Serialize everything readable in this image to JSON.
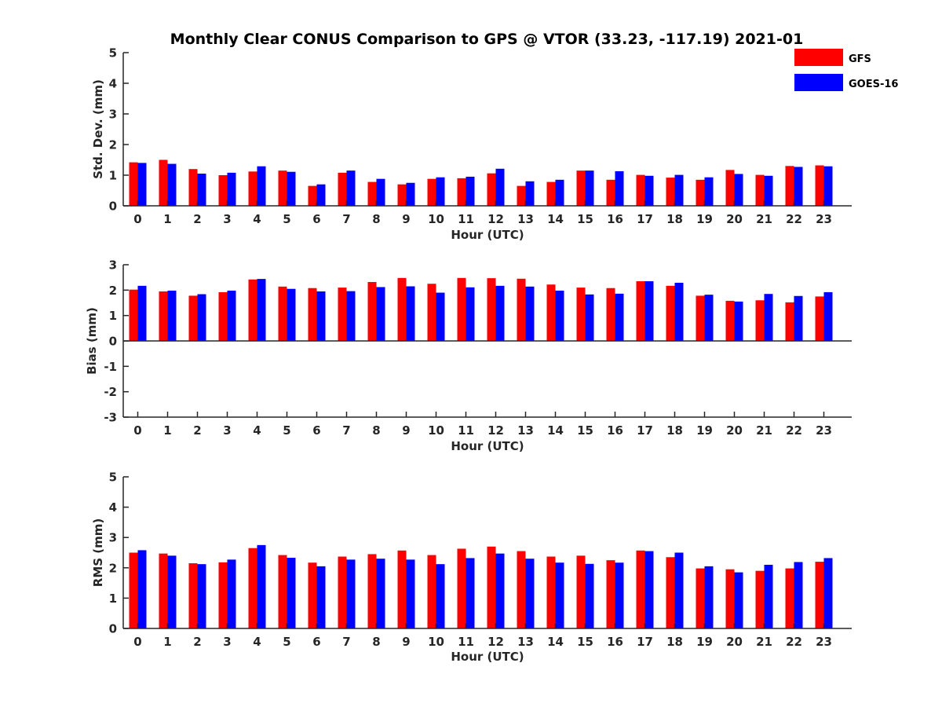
{
  "colors": {
    "gfs": "#ff0000",
    "goes": "#0000ff",
    "axis": "#262626"
  },
  "chart_data": [
    {
      "type": "bar",
      "title": "Monthly Clear CONUS Comparison to GPS @ VTOR (33.23, -117.19) 2021-01",
      "xlabel": "Hour (UTC)",
      "ylabel": "Std. Dev. (mm)",
      "ylim": [
        0,
        5
      ],
      "yticks": [
        "0",
        "1",
        "2",
        "3",
        "4",
        "5"
      ],
      "categories": [
        "0",
        "1",
        "2",
        "3",
        "4",
        "5",
        "6",
        "7",
        "8",
        "9",
        "10",
        "11",
        "12",
        "13",
        "14",
        "15",
        "16",
        "17",
        "18",
        "19",
        "20",
        "21",
        "22",
        "23"
      ],
      "legend": {
        "placement": "top-right",
        "entries": [
          "GFS",
          "GOES-16"
        ]
      },
      "series": [
        {
          "name": "GFS",
          "values": [
            1.42,
            1.5,
            1.2,
            1.0,
            1.12,
            1.15,
            0.65,
            1.08,
            0.78,
            0.7,
            0.88,
            0.9,
            1.06,
            0.65,
            0.78,
            1.15,
            0.85,
            1.01,
            0.92,
            0.85,
            1.17,
            1.01,
            1.3,
            1.32
          ]
        },
        {
          "name": "GOES-16",
          "values": [
            1.4,
            1.37,
            1.05,
            1.08,
            1.29,
            1.11,
            0.7,
            1.15,
            0.88,
            0.75,
            0.93,
            0.95,
            1.21,
            0.8,
            0.85,
            1.15,
            1.13,
            0.98,
            1.01,
            0.93,
            1.04,
            0.98,
            1.27,
            1.29
          ]
        }
      ]
    },
    {
      "type": "bar",
      "xlabel": "Hour (UTC)",
      "ylabel": "Bias (mm)",
      "ylim": [
        -3,
        3
      ],
      "yticks": [
        "-3",
        "-2",
        "-1",
        "0",
        "1",
        "2",
        "3"
      ],
      "categories": [
        "0",
        "1",
        "2",
        "3",
        "4",
        "5",
        "6",
        "7",
        "8",
        "9",
        "10",
        "11",
        "12",
        "13",
        "14",
        "15",
        "16",
        "17",
        "18",
        "19",
        "20",
        "21",
        "22",
        "23"
      ],
      "series": [
        {
          "name": "GFS",
          "values": [
            2.02,
            1.95,
            1.78,
            1.92,
            2.42,
            2.14,
            2.08,
            2.1,
            2.32,
            2.48,
            2.25,
            2.48,
            2.47,
            2.45,
            2.22,
            2.1,
            2.08,
            2.35,
            2.17,
            1.78,
            1.58,
            1.6,
            1.52,
            1.75
          ]
        },
        {
          "name": "GOES-16",
          "values": [
            2.17,
            1.98,
            1.84,
            1.98,
            2.44,
            2.05,
            1.95,
            1.96,
            2.12,
            2.15,
            1.9,
            2.11,
            2.17,
            2.14,
            1.98,
            1.83,
            1.86,
            2.35,
            2.29,
            1.82,
            1.55,
            1.85,
            1.77,
            1.92
          ]
        }
      ]
    },
    {
      "type": "bar",
      "xlabel": "Hour (UTC)",
      "ylabel": "RMS (mm)",
      "ylim": [
        0,
        5
      ],
      "yticks": [
        "0",
        "1",
        "2",
        "3",
        "4",
        "5"
      ],
      "categories": [
        "0",
        "1",
        "2",
        "3",
        "4",
        "5",
        "6",
        "7",
        "8",
        "9",
        "10",
        "11",
        "12",
        "13",
        "14",
        "15",
        "16",
        "17",
        "18",
        "19",
        "20",
        "21",
        "22",
        "23"
      ],
      "series": [
        {
          "name": "GFS",
          "values": [
            2.5,
            2.47,
            2.15,
            2.18,
            2.65,
            2.42,
            2.17,
            2.37,
            2.45,
            2.57,
            2.42,
            2.63,
            2.7,
            2.55,
            2.37,
            2.4,
            2.25,
            2.57,
            2.35,
            1.98,
            1.95,
            1.9,
            1.98,
            2.2
          ]
        },
        {
          "name": "GOES-16",
          "values": [
            2.58,
            2.4,
            2.12,
            2.27,
            2.75,
            2.33,
            2.05,
            2.27,
            2.3,
            2.27,
            2.12,
            2.32,
            2.47,
            2.3,
            2.17,
            2.13,
            2.17,
            2.55,
            2.5,
            2.05,
            1.85,
            2.1,
            2.19,
            2.32
          ]
        }
      ]
    }
  ]
}
